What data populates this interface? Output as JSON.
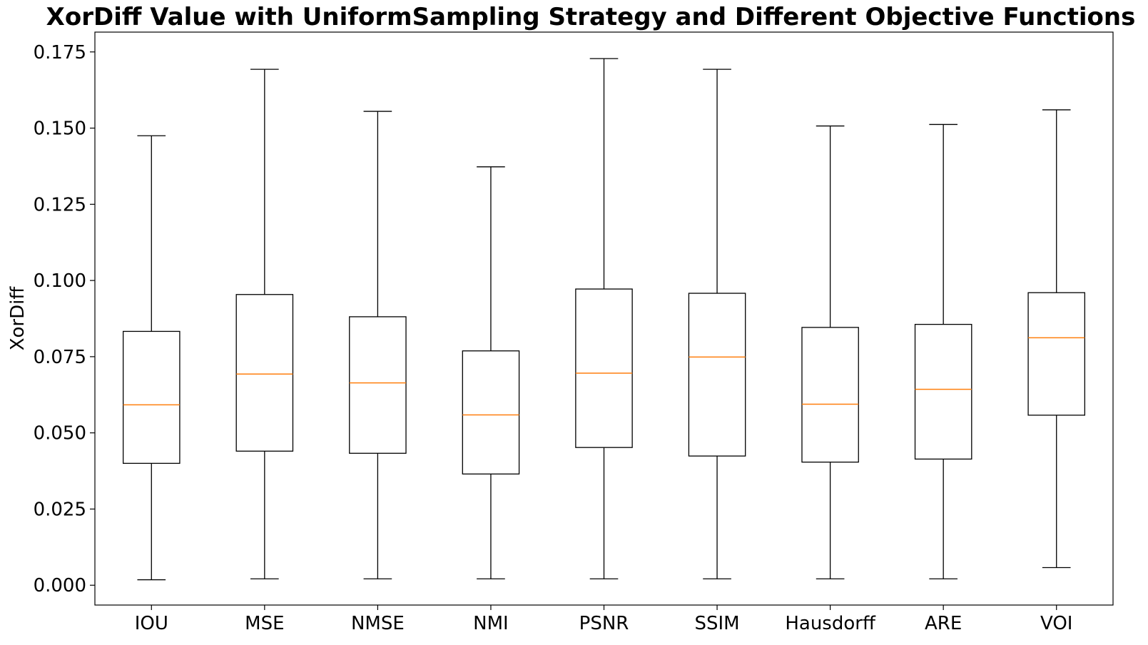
{
  "chart_data": {
    "type": "box",
    "title": "XorDiff Value with UniformSampling Strategy and Different Objective Functions",
    "xlabel": "",
    "ylabel": "XorDiff",
    "ylim": [
      -0.0065,
      0.1815
    ],
    "yticks": [
      0.0,
      0.025,
      0.05,
      0.075,
      0.1,
      0.125,
      0.15,
      0.175
    ],
    "ytick_labels": [
      "0.000",
      "0.025",
      "0.050",
      "0.075",
      "0.100",
      "0.125",
      "0.150",
      "0.175"
    ],
    "grid": false,
    "categories": [
      "IOU",
      "MSE",
      "NMSE",
      "NMI",
      "PSNR",
      "SSIM",
      "Hausdorff",
      "ARE",
      "VOI"
    ],
    "boxes": [
      {
        "category": "IOU",
        "whisker_low": 0.0018,
        "q1": 0.04,
        "median": 0.0592,
        "q3": 0.0833,
        "whisker_high": 0.1475
      },
      {
        "category": "MSE",
        "whisker_low": 0.0021,
        "q1": 0.044,
        "median": 0.0693,
        "q3": 0.0954,
        "whisker_high": 0.1693
      },
      {
        "category": "NMSE",
        "whisker_low": 0.0021,
        "q1": 0.0433,
        "median": 0.0664,
        "q3": 0.0881,
        "whisker_high": 0.1555
      },
      {
        "category": "NMI",
        "whisker_low": 0.0021,
        "q1": 0.0365,
        "median": 0.0559,
        "q3": 0.0769,
        "whisker_high": 0.1373
      },
      {
        "category": "PSNR",
        "whisker_low": 0.0021,
        "q1": 0.0452,
        "median": 0.0696,
        "q3": 0.0972,
        "whisker_high": 0.1728
      },
      {
        "category": "SSIM",
        "whisker_low": 0.0021,
        "q1": 0.0424,
        "median": 0.0749,
        "q3": 0.0958,
        "whisker_high": 0.1693
      },
      {
        "category": "Hausdorff",
        "whisker_low": 0.0021,
        "q1": 0.0404,
        "median": 0.0594,
        "q3": 0.0846,
        "whisker_high": 0.1507
      },
      {
        "category": "ARE",
        "whisker_low": 0.0021,
        "q1": 0.0414,
        "median": 0.0643,
        "q3": 0.0856,
        "whisker_high": 0.1512
      },
      {
        "category": "VOI",
        "whisker_low": 0.0058,
        "q1": 0.0558,
        "median": 0.0812,
        "q3": 0.096,
        "whisker_high": 0.156
      }
    ],
    "colors": {
      "box": "#000000",
      "median": "#ff7f0e",
      "axes": "#000000",
      "background": "#ffffff"
    }
  }
}
